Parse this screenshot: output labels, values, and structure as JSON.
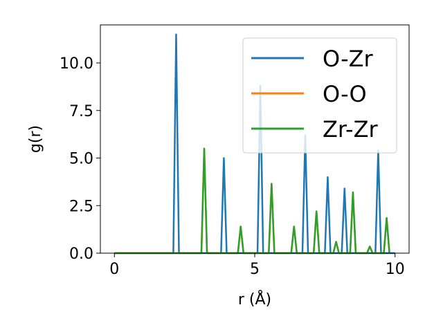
{
  "chart_data": {
    "type": "line",
    "xlabel": "r (Å)",
    "ylabel": "g(r)",
    "xlim": [
      -0.5,
      10.5
    ],
    "ylim": [
      0.0,
      12.0
    ],
    "xticks": [
      0,
      5,
      10
    ],
    "xtick_labels": [
      "0",
      "5",
      "10"
    ],
    "yticks": [
      0.0,
      2.5,
      5.0,
      7.5,
      10.0
    ],
    "ytick_labels": [
      "0.0",
      "2.5",
      "5.0",
      "7.5",
      "10.0"
    ],
    "grid": false,
    "legend_position": "top-right",
    "series": [
      {
        "name": "O-Zr",
        "color": "#1f77b4",
        "x": [
          0.0,
          2.1,
          2.2,
          2.3,
          3.8,
          3.9,
          4.0,
          5.1,
          5.2,
          5.3,
          6.7,
          6.8,
          6.9,
          7.5,
          7.6,
          7.7,
          8.1,
          8.2,
          8.3,
          9.3,
          9.4,
          9.5,
          10.0
        ],
        "y": [
          0.0,
          0.0,
          11.5,
          0.0,
          0.0,
          5.0,
          0.0,
          0.0,
          8.8,
          0.0,
          0.0,
          6.2,
          0.0,
          0.0,
          4.0,
          0.0,
          0.0,
          3.4,
          0.0,
          0.0,
          5.4,
          0.0,
          0.0
        ]
      },
      {
        "name": "O-O",
        "color": "#ff7f0e",
        "x": [
          0.0,
          3.1,
          3.2,
          3.3,
          4.4,
          4.5,
          4.6,
          5.5,
          5.6,
          5.7,
          6.3,
          6.4,
          6.5,
          7.1,
          7.2,
          7.3,
          7.8,
          7.9,
          8.0,
          8.4,
          8.5,
          8.6,
          9.0,
          9.1,
          9.2,
          9.6,
          9.7,
          9.8
        ],
        "y": [
          0.0,
          0.0,
          5.5,
          0.0,
          0.0,
          1.4,
          0.0,
          0.0,
          3.65,
          0.0,
          0.0,
          1.4,
          0.0,
          0.0,
          2.2,
          0.0,
          0.0,
          0.6,
          0.0,
          0.0,
          3.2,
          0.0,
          0.0,
          0.35,
          0.0,
          0.0,
          1.85,
          0.0
        ]
      },
      {
        "name": "Zr-Zr",
        "color": "#2ca02c",
        "x": [
          0.0,
          3.1,
          3.2,
          3.3,
          4.4,
          4.5,
          4.6,
          5.5,
          5.6,
          5.7,
          6.3,
          6.4,
          6.5,
          7.1,
          7.2,
          7.3,
          7.8,
          7.9,
          8.0,
          8.4,
          8.5,
          8.6,
          9.0,
          9.1,
          9.2,
          9.6,
          9.7,
          9.8
        ],
        "y": [
          0.0,
          0.0,
          5.5,
          0.0,
          0.0,
          1.4,
          0.0,
          0.0,
          3.65,
          0.0,
          0.0,
          1.4,
          0.0,
          0.0,
          2.2,
          0.0,
          0.0,
          0.6,
          0.0,
          0.0,
          3.2,
          0.0,
          0.0,
          0.35,
          0.0,
          0.0,
          1.85,
          0.0
        ]
      }
    ]
  }
}
